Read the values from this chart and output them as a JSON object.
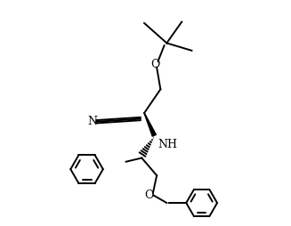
{
  "background_color": "#ffffff",
  "line_color": "#000000",
  "line_width": 1.4,
  "figsize": [
    3.27,
    2.54
  ],
  "dpi": 100,
  "xlim": [
    0.5,
    10.0
  ],
  "ylim": [
    0.5,
    9.5
  ]
}
